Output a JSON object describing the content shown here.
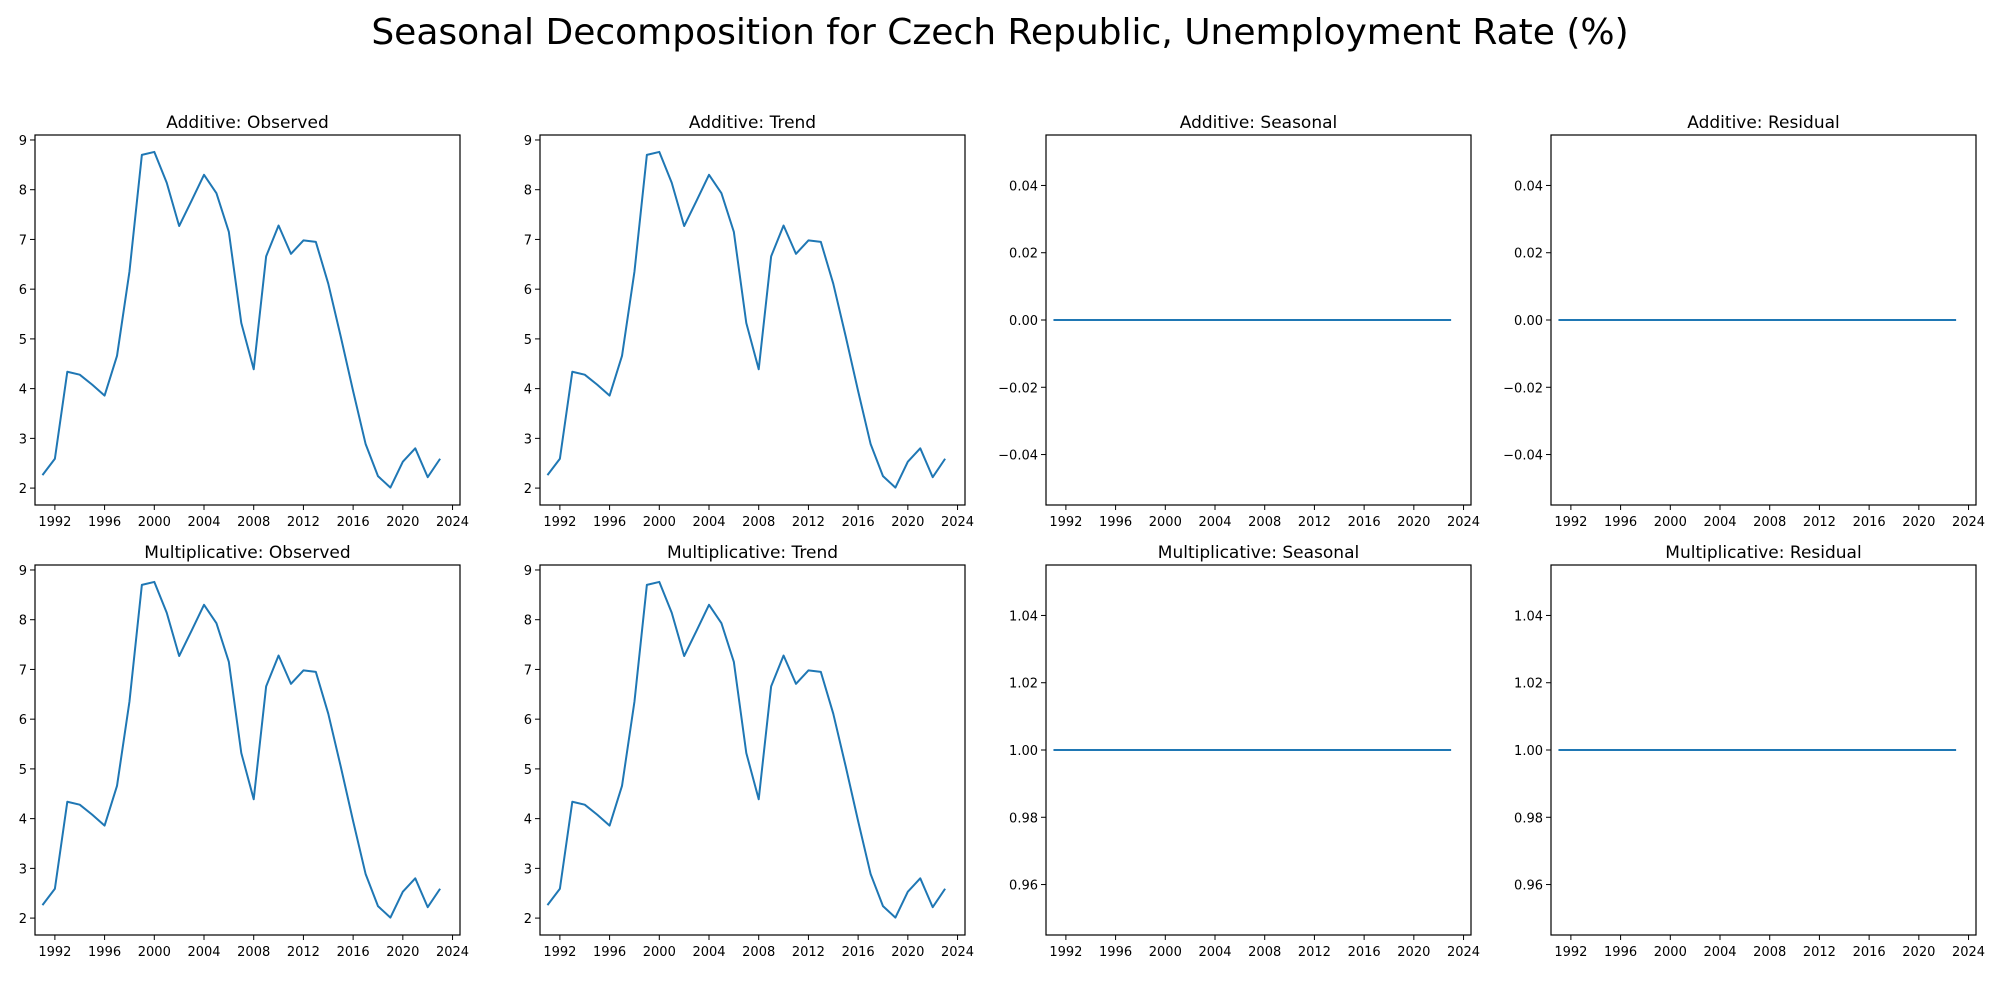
{
  "title": "Seasonal Decomposition for Czech Republic, Unemployment Rate (%)",
  "colors": {
    "line": "#1f77b4",
    "axis": "#000000",
    "background": "#ffffff"
  },
  "chart_data": [
    {
      "type": "line",
      "title": "Additive: Observed",
      "x": [
        1991,
        1992,
        1993,
        1994,
        1995,
        1996,
        1997,
        1998,
        1999,
        2000,
        2001,
        2002,
        2003,
        2004,
        2005,
        2006,
        2007,
        2008,
        2009,
        2010,
        2011,
        2012,
        2013,
        2014,
        2015,
        2016,
        2017,
        2018,
        2019,
        2020,
        2021,
        2022,
        2023
      ],
      "values": [
        2.26,
        2.59,
        4.34,
        4.28,
        4.08,
        3.86,
        4.66,
        6.35,
        8.7,
        8.76,
        8.14,
        7.27,
        7.78,
        8.3,
        7.93,
        7.15,
        5.32,
        4.39,
        6.66,
        7.28,
        6.71,
        6.98,
        6.95,
        6.11,
        5.05,
        3.95,
        2.89,
        2.24,
        2.01,
        2.53,
        2.8,
        2.22,
        2.59
      ],
      "xlim": [
        1990.4,
        2024.6
      ],
      "xticks": [
        1992,
        1996,
        2000,
        2004,
        2008,
        2012,
        2016,
        2020,
        2024
      ],
      "ylim": [
        1.66,
        9.1
      ],
      "yticks": [
        2,
        3,
        4,
        5,
        6,
        7,
        8,
        9
      ],
      "ytick_labels": [
        "2",
        "3",
        "4",
        "5",
        "6",
        "7",
        "8",
        "9"
      ]
    },
    {
      "type": "line",
      "title": "Additive: Trend",
      "x": [
        1991,
        1992,
        1993,
        1994,
        1995,
        1996,
        1997,
        1998,
        1999,
        2000,
        2001,
        2002,
        2003,
        2004,
        2005,
        2006,
        2007,
        2008,
        2009,
        2010,
        2011,
        2012,
        2013,
        2014,
        2015,
        2016,
        2017,
        2018,
        2019,
        2020,
        2021,
        2022,
        2023
      ],
      "values": [
        2.26,
        2.59,
        4.34,
        4.28,
        4.08,
        3.86,
        4.66,
        6.35,
        8.7,
        8.76,
        8.14,
        7.27,
        7.78,
        8.3,
        7.93,
        7.15,
        5.32,
        4.39,
        6.66,
        7.28,
        6.71,
        6.98,
        6.95,
        6.11,
        5.05,
        3.95,
        2.89,
        2.24,
        2.01,
        2.53,
        2.8,
        2.22,
        2.59
      ],
      "xlim": [
        1990.4,
        2024.6
      ],
      "xticks": [
        1992,
        1996,
        2000,
        2004,
        2008,
        2012,
        2016,
        2020,
        2024
      ],
      "ylim": [
        1.66,
        9.1
      ],
      "yticks": [
        2,
        3,
        4,
        5,
        6,
        7,
        8,
        9
      ],
      "ytick_labels": [
        "2",
        "3",
        "4",
        "5",
        "6",
        "7",
        "8",
        "9"
      ]
    },
    {
      "type": "line",
      "title": "Additive: Seasonal",
      "x": [
        1991,
        2023
      ],
      "values": [
        0,
        0
      ],
      "xlim": [
        1990.4,
        2024.6
      ],
      "xticks": [
        1992,
        1996,
        2000,
        2004,
        2008,
        2012,
        2016,
        2020,
        2024
      ],
      "ylim": [
        -0.055,
        0.055
      ],
      "yticks": [
        -0.04,
        -0.02,
        0,
        0.02,
        0.04
      ],
      "ytick_labels": [
        "−0.04",
        "−0.02",
        "0.00",
        "0.02",
        "0.04"
      ]
    },
    {
      "type": "line",
      "title": "Additive: Residual",
      "x": [
        1991,
        2023
      ],
      "values": [
        0,
        0
      ],
      "xlim": [
        1990.4,
        2024.6
      ],
      "xticks": [
        1992,
        1996,
        2000,
        2004,
        2008,
        2012,
        2016,
        2020,
        2024
      ],
      "ylim": [
        -0.055,
        0.055
      ],
      "yticks": [
        -0.04,
        -0.02,
        0,
        0.02,
        0.04
      ],
      "ytick_labels": [
        "−0.04",
        "−0.02",
        "0.00",
        "0.02",
        "0.04"
      ]
    },
    {
      "type": "line",
      "title": "Multiplicative: Observed",
      "x": [
        1991,
        1992,
        1993,
        1994,
        1995,
        1996,
        1997,
        1998,
        1999,
        2000,
        2001,
        2002,
        2003,
        2004,
        2005,
        2006,
        2007,
        2008,
        2009,
        2010,
        2011,
        2012,
        2013,
        2014,
        2015,
        2016,
        2017,
        2018,
        2019,
        2020,
        2021,
        2022,
        2023
      ],
      "values": [
        2.26,
        2.59,
        4.34,
        4.28,
        4.08,
        3.86,
        4.66,
        6.35,
        8.7,
        8.76,
        8.14,
        7.27,
        7.78,
        8.3,
        7.93,
        7.15,
        5.32,
        4.39,
        6.66,
        7.28,
        6.71,
        6.98,
        6.95,
        6.11,
        5.05,
        3.95,
        2.89,
        2.24,
        2.01,
        2.53,
        2.8,
        2.22,
        2.59
      ],
      "xlim": [
        1990.4,
        2024.6
      ],
      "xticks": [
        1992,
        1996,
        2000,
        2004,
        2008,
        2012,
        2016,
        2020,
        2024
      ],
      "ylim": [
        1.66,
        9.1
      ],
      "yticks": [
        2,
        3,
        4,
        5,
        6,
        7,
        8,
        9
      ],
      "ytick_labels": [
        "2",
        "3",
        "4",
        "5",
        "6",
        "7",
        "8",
        "9"
      ]
    },
    {
      "type": "line",
      "title": "Multiplicative: Trend",
      "x": [
        1991,
        1992,
        1993,
        1994,
        1995,
        1996,
        1997,
        1998,
        1999,
        2000,
        2001,
        2002,
        2003,
        2004,
        2005,
        2006,
        2007,
        2008,
        2009,
        2010,
        2011,
        2012,
        2013,
        2014,
        2015,
        2016,
        2017,
        2018,
        2019,
        2020,
        2021,
        2022,
        2023
      ],
      "values": [
        2.26,
        2.59,
        4.34,
        4.28,
        4.08,
        3.86,
        4.66,
        6.35,
        8.7,
        8.76,
        8.14,
        7.27,
        7.78,
        8.3,
        7.93,
        7.15,
        5.32,
        4.39,
        6.66,
        7.28,
        6.71,
        6.98,
        6.95,
        6.11,
        5.05,
        3.95,
        2.89,
        2.24,
        2.01,
        2.53,
        2.8,
        2.22,
        2.59
      ],
      "xlim": [
        1990.4,
        2024.6
      ],
      "xticks": [
        1992,
        1996,
        2000,
        2004,
        2008,
        2012,
        2016,
        2020,
        2024
      ],
      "ylim": [
        1.66,
        9.1
      ],
      "yticks": [
        2,
        3,
        4,
        5,
        6,
        7,
        8,
        9
      ],
      "ytick_labels": [
        "2",
        "3",
        "4",
        "5",
        "6",
        "7",
        "8",
        "9"
      ]
    },
    {
      "type": "line",
      "title": "Multiplicative: Seasonal",
      "x": [
        1991,
        2023
      ],
      "values": [
        1,
        1
      ],
      "xlim": [
        1990.4,
        2024.6
      ],
      "xticks": [
        1992,
        1996,
        2000,
        2004,
        2008,
        2012,
        2016,
        2020,
        2024
      ],
      "ylim": [
        0.945,
        1.055
      ],
      "yticks": [
        0.96,
        0.98,
        1.0,
        1.02,
        1.04
      ],
      "ytick_labels": [
        "0.96",
        "0.98",
        "1.00",
        "1.02",
        "1.04"
      ]
    },
    {
      "type": "line",
      "title": "Multiplicative: Residual",
      "x": [
        1991,
        2023
      ],
      "values": [
        1,
        1
      ],
      "xlim": [
        1990.4,
        2024.6
      ],
      "xticks": [
        1992,
        1996,
        2000,
        2004,
        2008,
        2012,
        2016,
        2020,
        2024
      ],
      "ylim": [
        0.945,
        1.055
      ],
      "yticks": [
        0.96,
        0.98,
        1.0,
        1.02,
        1.04
      ],
      "ytick_labels": [
        "0.96",
        "0.98",
        "1.00",
        "1.02",
        "1.04"
      ]
    }
  ]
}
